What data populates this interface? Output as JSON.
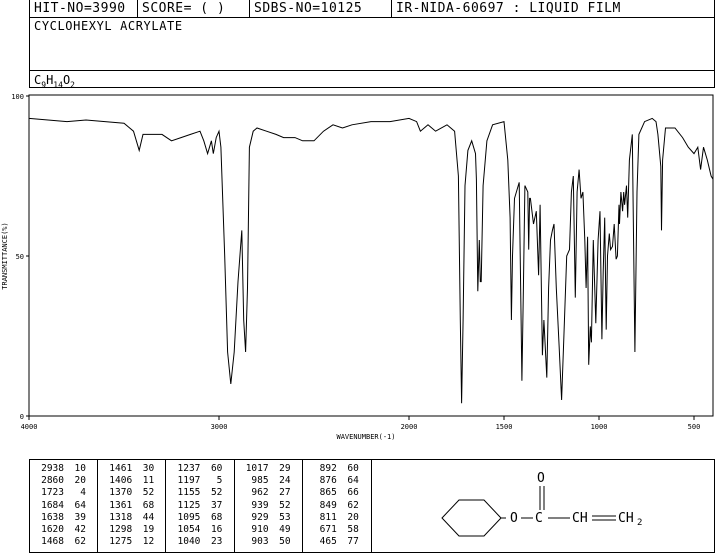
{
  "header": {
    "hit_no": "HIT-NO=3990",
    "score": "SCORE=  (   )",
    "sdbs_no": "SDBS-NO=10125",
    "ir_info": "IR-NIDA-60697 : LIQUID FILM"
  },
  "compound": {
    "name": "CYCLOHEXYL ACRYLATE",
    "formula_parts": [
      "C",
      "9",
      "H",
      "14",
      "O",
      "2"
    ]
  },
  "chart_data": {
    "type": "line",
    "xlabel": "WAVENUMBER(-1)",
    "ylabel": "TRANSMITTANCE(%)",
    "xlim": [
      4000,
      400
    ],
    "ylim": [
      0,
      100
    ],
    "x_ticks": [
      4000,
      3000,
      2000,
      1500,
      1000,
      500
    ],
    "x_tick_labels": [
      "4000",
      "3000",
      "2000",
      "1500",
      "1000",
      "500"
    ],
    "y_ticks": [
      0,
      50,
      100
    ],
    "y_tick_labels": [
      "0",
      "50",
      "100"
    ],
    "grid": false,
    "spectrum": [
      [
        4000,
        93
      ],
      [
        3900,
        92.5
      ],
      [
        3800,
        92
      ],
      [
        3700,
        92.5
      ],
      [
        3600,
        92
      ],
      [
        3500,
        91.5
      ],
      [
        3450,
        89
      ],
      [
        3420,
        83
      ],
      [
        3400,
        88
      ],
      [
        3300,
        88
      ],
      [
        3250,
        86
      ],
      [
        3200,
        87
      ],
      [
        3150,
        88
      ],
      [
        3100,
        89
      ],
      [
        3080,
        86
      ],
      [
        3060,
        82
      ],
      [
        3040,
        86
      ],
      [
        3030,
        82
      ],
      [
        3015,
        87
      ],
      [
        3000,
        89
      ],
      [
        2990,
        84
      ],
      [
        2970,
        50
      ],
      [
        2955,
        20
      ],
      [
        2938,
        10
      ],
      [
        2920,
        20
      ],
      [
        2900,
        42
      ],
      [
        2880,
        58
      ],
      [
        2870,
        30
      ],
      [
        2860,
        20
      ],
      [
        2850,
        40
      ],
      [
        2840,
        84
      ],
      [
        2820,
        89
      ],
      [
        2800,
        90
      ],
      [
        2750,
        89
      ],
      [
        2700,
        88
      ],
      [
        2660,
        87
      ],
      [
        2600,
        87
      ],
      [
        2560,
        86
      ],
      [
        2500,
        86
      ],
      [
        2450,
        89
      ],
      [
        2400,
        91
      ],
      [
        2350,
        90
      ],
      [
        2300,
        91
      ],
      [
        2200,
        92
      ],
      [
        2100,
        92
      ],
      [
        2000,
        93
      ],
      [
        1960,
        92
      ],
      [
        1940,
        89
      ],
      [
        1900,
        91
      ],
      [
        1860,
        89
      ],
      [
        1800,
        91
      ],
      [
        1760,
        89
      ],
      [
        1740,
        75
      ],
      [
        1730,
        30
      ],
      [
        1723,
        4
      ],
      [
        1715,
        30
      ],
      [
        1705,
        72
      ],
      [
        1690,
        83
      ],
      [
        1670,
        86
      ],
      [
        1650,
        82
      ],
      [
        1645,
        74
      ],
      [
        1638,
        39
      ],
      [
        1630,
        55
      ],
      [
        1625,
        42
      ],
      [
        1620,
        42
      ],
      [
        1610,
        72
      ],
      [
        1590,
        86
      ],
      [
        1560,
        91
      ],
      [
        1500,
        92
      ],
      [
        1480,
        80
      ],
      [
        1468,
        62
      ],
      [
        1461,
        30
      ],
      [
        1455,
        50
      ],
      [
        1445,
        68
      ],
      [
        1420,
        73
      ],
      [
        1410,
        30
      ],
      [
        1406,
        11
      ],
      [
        1398,
        40
      ],
      [
        1390,
        72
      ],
      [
        1375,
        70
      ],
      [
        1370,
        52
      ],
      [
        1365,
        68
      ],
      [
        1361,
        68
      ],
      [
        1345,
        60
      ],
      [
        1330,
        64
      ],
      [
        1318,
        44
      ],
      [
        1310,
        66
      ],
      [
        1298,
        19
      ],
      [
        1290,
        30
      ],
      [
        1275,
        12
      ],
      [
        1265,
        40
      ],
      [
        1255,
        55
      ],
      [
        1245,
        58
      ],
      [
        1237,
        60
      ],
      [
        1225,
        40
      ],
      [
        1210,
        22
      ],
      [
        1197,
        5
      ],
      [
        1185,
        25
      ],
      [
        1170,
        50
      ],
      [
        1155,
        52
      ],
      [
        1145,
        70
      ],
      [
        1135,
        75
      ],
      [
        1125,
        37
      ],
      [
        1115,
        70
      ],
      [
        1105,
        77
      ],
      [
        1095,
        68
      ],
      [
        1085,
        70
      ],
      [
        1075,
        55
      ],
      [
        1068,
        40
      ],
      [
        1060,
        56
      ],
      [
        1054,
        16
      ],
      [
        1046,
        28
      ],
      [
        1040,
        23
      ],
      [
        1030,
        55
      ],
      [
        1017,
        29
      ],
      [
        1005,
        55
      ],
      [
        995,
        64
      ],
      [
        985,
        24
      ],
      [
        978,
        45
      ],
      [
        970,
        62
      ],
      [
        962,
        27
      ],
      [
        955,
        50
      ],
      [
        946,
        57
      ],
      [
        939,
        52
      ],
      [
        929,
        53
      ],
      [
        920,
        60
      ],
      [
        910,
        49
      ],
      [
        903,
        50
      ],
      [
        895,
        66
      ],
      [
        892,
        60
      ],
      [
        885,
        70
      ],
      [
        876,
        64
      ],
      [
        870,
        70
      ],
      [
        865,
        66
      ],
      [
        855,
        72
      ],
      [
        849,
        62
      ],
      [
        840,
        80
      ],
      [
        825,
        88
      ],
      [
        811,
        20
      ],
      [
        800,
        70
      ],
      [
        790,
        88
      ],
      [
        760,
        92
      ],
      [
        720,
        93
      ],
      [
        700,
        92
      ],
      [
        690,
        88
      ],
      [
        675,
        78
      ],
      [
        671,
        58
      ],
      [
        665,
        80
      ],
      [
        650,
        90
      ],
      [
        600,
        90
      ],
      [
        560,
        87
      ],
      [
        530,
        84
      ],
      [
        500,
        82
      ],
      [
        480,
        84
      ],
      [
        465,
        77
      ],
      [
        450,
        84
      ],
      [
        430,
        80
      ],
      [
        410,
        75
      ],
      [
        400,
        74
      ]
    ],
    "peaks_table": [
      [
        [
          2938,
          10
        ],
        [
          2860,
          20
        ],
        [
          1723,
          4
        ],
        [
          1684,
          64
        ],
        [
          1638,
          39
        ],
        [
          1620,
          42
        ],
        [
          1468,
          62
        ]
      ],
      [
        [
          1461,
          30
        ],
        [
          1406,
          11
        ],
        [
          1370,
          52
        ],
        [
          1361,
          68
        ],
        [
          1318,
          44
        ],
        [
          1298,
          19
        ],
        [
          1275,
          12
        ]
      ],
      [
        [
          1237,
          60
        ],
        [
          1197,
          5
        ],
        [
          1155,
          52
        ],
        [
          1125,
          37
        ],
        [
          1095,
          68
        ],
        [
          1054,
          16
        ],
        [
          1040,
          23
        ]
      ],
      [
        [
          1017,
          29
        ],
        [
          985,
          24
        ],
        [
          962,
          27
        ],
        [
          939,
          52
        ],
        [
          929,
          53
        ],
        [
          910,
          49
        ],
        [
          903,
          50
        ]
      ],
      [
        [
          892,
          60
        ],
        [
          876,
          64
        ],
        [
          865,
          66
        ],
        [
          849,
          62
        ],
        [
          811,
          20
        ],
        [
          671,
          58
        ],
        [
          465,
          77
        ]
      ]
    ]
  }
}
